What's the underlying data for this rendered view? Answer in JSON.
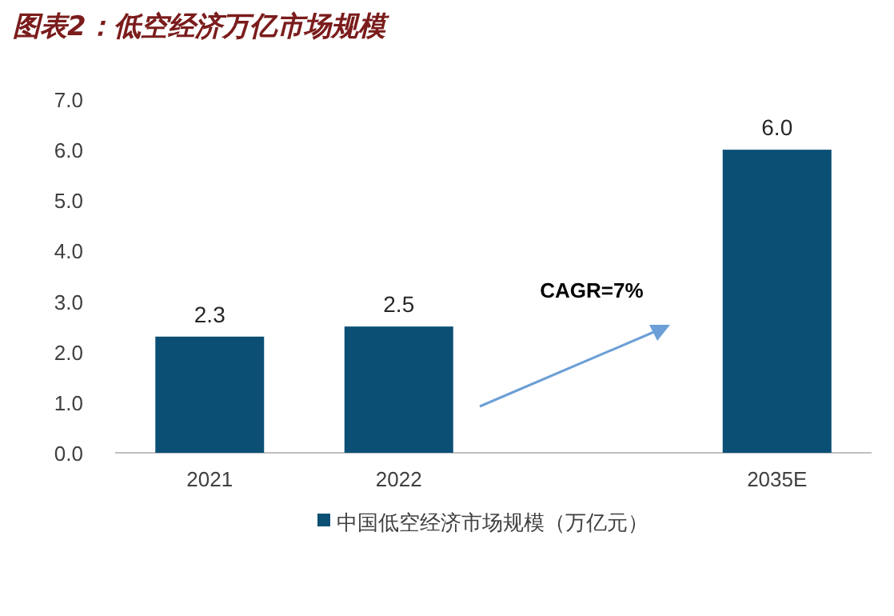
{
  "chart_data": {
    "type": "bar",
    "title": "图表2：低空经济万亿市场规模",
    "categories": [
      "2021",
      "2022",
      null,
      "2035E"
    ],
    "series": [
      {
        "name": "中国低空经济市场规模（万亿元）",
        "color": "#0b4f75",
        "values": [
          2.3,
          2.5,
          null,
          6.0
        ],
        "value_labels": [
          "2.3",
          "2.5",
          null,
          "6.0"
        ]
      }
    ],
    "ylim": [
      0,
      7
    ],
    "yticks": [
      {
        "value": 0,
        "label": "0.0"
      },
      {
        "value": 1,
        "label": "1.0"
      },
      {
        "value": 2,
        "label": "2.0"
      },
      {
        "value": 3,
        "label": "3.0"
      },
      {
        "value": 4,
        "label": "4.0"
      },
      {
        "value": 5,
        "label": "5.0"
      },
      {
        "value": 6,
        "label": "6.0"
      },
      {
        "value": 7,
        "label": "7.0"
      }
    ],
    "legend": "bottom",
    "annotations": [
      "CAGR=7%"
    ]
  }
}
